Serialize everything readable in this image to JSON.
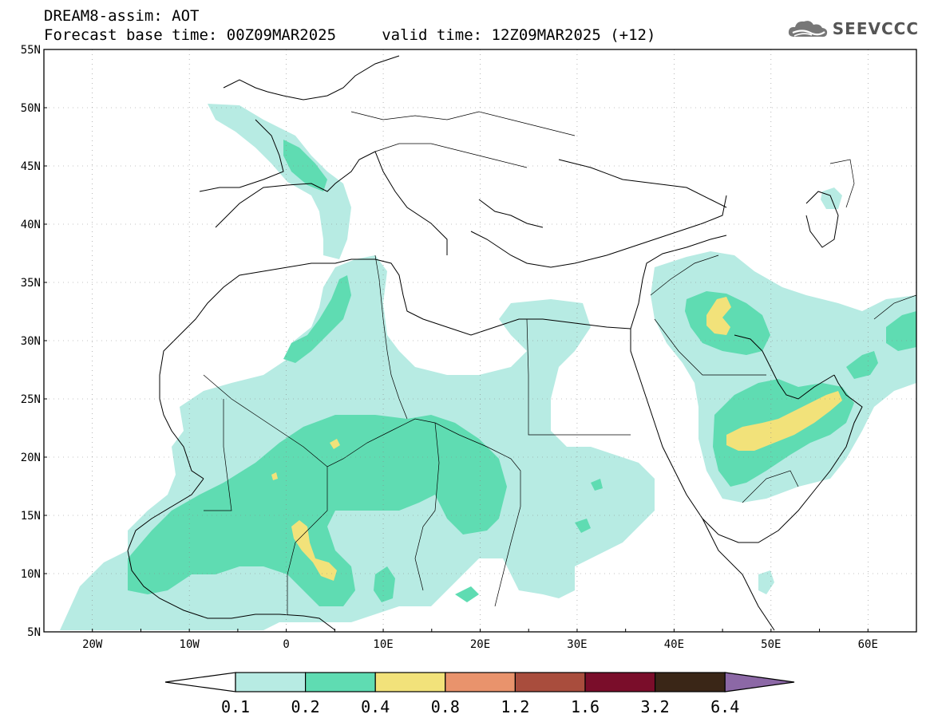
{
  "header": {
    "line1": "DREAM8-assim: AOT",
    "line2": "Forecast base time: 00Z09MAR2025     valid time: 12Z09MAR2025 (+12)"
  },
  "logo": {
    "text": "SEEVCCC",
    "icon": "cloud-icon"
  },
  "map": {
    "lat_labels": [
      "55N",
      "50N",
      "45N",
      "40N",
      "35N",
      "30N",
      "25N",
      "20N",
      "15N",
      "10N",
      "5N"
    ],
    "lon_labels": [
      "20W",
      "10W",
      "0",
      "10E",
      "20E",
      "30E",
      "40E",
      "50E",
      "60E"
    ],
    "lat_range": [
      5,
      55
    ],
    "lon_range": [
      -25,
      65
    ]
  },
  "colorbar": {
    "labels": [
      "0.1",
      "0.2",
      "0.4",
      "0.8",
      "1.2",
      "1.6",
      "3.2",
      "6.4"
    ],
    "colors": [
      "#ffffff",
      "#b7ebe3",
      "#5fdcb2",
      "#f2e27a",
      "#e9936c",
      "#a94d3d",
      "#7a0d2a",
      "#3a2617",
      "#8c68a6"
    ]
  }
}
